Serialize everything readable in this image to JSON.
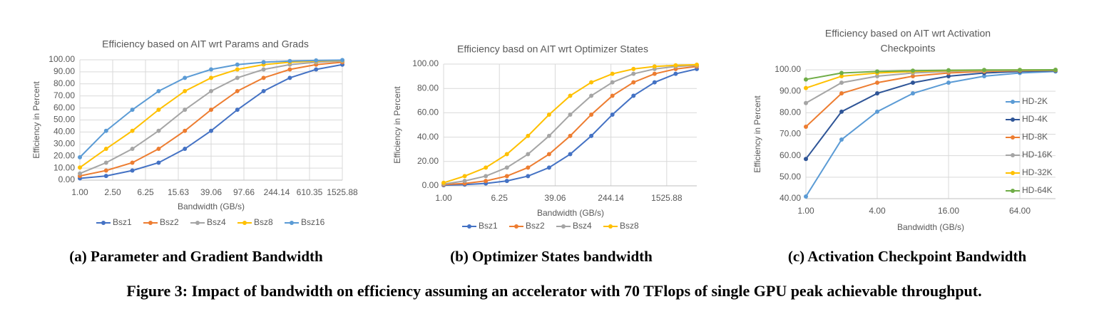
{
  "chart_data": [
    {
      "type": "line",
      "title": "Efficiency based on AIT wrt Params and Grads",
      "x_label": "Bandwidth (GB/s)",
      "y_label": "Efficiency in Percent",
      "x": [
        1,
        2.08,
        4.33,
        9.02,
        18.77,
        39.06,
        81.3,
        169.22,
        352.22,
        733.08,
        1525.88
      ],
      "xlim": [
        1,
        1525.88
      ],
      "xscale": "log",
      "xticks": [
        {
          "value": 1,
          "label": "1.00"
        },
        {
          "value": 2.5,
          "label": "2.50"
        },
        {
          "value": 6.25,
          "label": "6.25"
        },
        {
          "value": 15.625,
          "label": "15.63"
        },
        {
          "value": 39.0625,
          "label": "39.06"
        },
        {
          "value": 97.65625,
          "label": "97.66"
        },
        {
          "value": 244.140625,
          "label": "244.14"
        },
        {
          "value": 610.3515625,
          "label": "610.35"
        },
        {
          "value": 1525.87890625,
          "label": "1525.88"
        }
      ],
      "ylim": [
        0,
        100
      ],
      "yticks": [
        {
          "value": 0,
          "label": "0.00"
        },
        {
          "value": 10,
          "label": "10.00"
        },
        {
          "value": 20,
          "label": "20.00"
        },
        {
          "value": 30,
          "label": "30.00"
        },
        {
          "value": 40,
          "label": "40.00"
        },
        {
          "value": 50,
          "label": "50.00"
        },
        {
          "value": 60,
          "label": "60.00"
        },
        {
          "value": 70,
          "label": "70.00"
        },
        {
          "value": 80,
          "label": "80.00"
        },
        {
          "value": 90,
          "label": "90.00"
        },
        {
          "value": 100,
          "label": "100.00"
        }
      ],
      "grid": true,
      "legend": "bottom",
      "series": [
        {
          "name": "Bsz1",
          "color": "#4472c4",
          "values": [
            1.5,
            3.5,
            8,
            14.5,
            26,
            41,
            58.5,
            74,
            85,
            92,
            96
          ]
        },
        {
          "name": "Bsz2",
          "color": "#ed7d31",
          "values": [
            3.5,
            8,
            14.5,
            26,
            41,
            58.5,
            74,
            85,
            92,
            96,
            98
          ]
        },
        {
          "name": "Bsz4",
          "color": "#a5a5a5",
          "values": [
            5.5,
            14.5,
            26,
            41,
            58.5,
            74,
            85,
            92,
            96,
            98,
            99
          ]
        },
        {
          "name": "Bsz8",
          "color": "#ffc000",
          "values": [
            10.5,
            26,
            41,
            58.5,
            74,
            85,
            92,
            96,
            98,
            99,
            99.5
          ]
        },
        {
          "name": "Bsz16",
          "color": "#5b9bd5",
          "values": [
            19,
            41,
            58.5,
            74,
            85,
            92,
            96,
            98,
            99,
            99.5,
            99.8
          ]
        }
      ]
    },
    {
      "type": "line",
      "title": "Efficiency basd on AIT wrt Optimizer States",
      "x_label": "Bandwidth (GB/s)",
      "y_label": "Efficiency in Percent",
      "x": [
        1,
        2,
        4,
        8,
        16,
        32,
        64,
        128,
        256,
        512,
        1024,
        2048,
        4096
      ],
      "xlim": [
        1,
        4096
      ],
      "xscale": "log",
      "xticks": [
        {
          "value": 1,
          "label": "1.00"
        },
        {
          "value": 6.25,
          "label": "6.25"
        },
        {
          "value": 39.0625,
          "label": "39.06"
        },
        {
          "value": 244.140625,
          "label": "244.14"
        },
        {
          "value": 1525.87890625,
          "label": "1525.88"
        }
      ],
      "ylim": [
        0,
        100
      ],
      "yticks": [
        {
          "value": 0,
          "label": "0.00"
        },
        {
          "value": 20,
          "label": "20.00"
        },
        {
          "value": 40,
          "label": "40.00"
        },
        {
          "value": 60,
          "label": "60.00"
        },
        {
          "value": 80,
          "label": "80.00"
        },
        {
          "value": 100,
          "label": "100.00"
        }
      ],
      "grid": true,
      "legend": "bottom",
      "series": [
        {
          "name": "Bsz1",
          "color": "#4472c4",
          "values": [
            0.5,
            1,
            2,
            4,
            8,
            15,
            26,
            41,
            58.5,
            74,
            85,
            92,
            96
          ]
        },
        {
          "name": "Bsz2",
          "color": "#ed7d31",
          "values": [
            1,
            2,
            4,
            8,
            15,
            26,
            41,
            58.5,
            74,
            85,
            92,
            96,
            98
          ]
        },
        {
          "name": "Bsz4",
          "color": "#a5a5a5",
          "values": [
            1.5,
            4,
            8,
            15,
            26,
            41,
            58.5,
            74,
            85,
            92,
            96,
            98,
            99
          ]
        },
        {
          "name": "Bsz8",
          "color": "#ffc000",
          "values": [
            2.5,
            8,
            15,
            26,
            41,
            58.5,
            74,
            85,
            92,
            96,
            98,
            99,
            99.5
          ]
        }
      ]
    },
    {
      "type": "line",
      "title": [
        "Efficiency based on AIT wrt Activation",
        "Checkpoints"
      ],
      "x_label": "Bandwidth (GB/s)",
      "y_label": "Efficiency in Percent",
      "x": [
        1,
        2,
        4,
        8,
        16,
        32,
        64,
        128
      ],
      "xlim": [
        1,
        128
      ],
      "xscale": "log",
      "xticks": [
        {
          "value": 1,
          "label": "1.00"
        },
        {
          "value": 4,
          "label": "4.00"
        },
        {
          "value": 16,
          "label": "16.00"
        },
        {
          "value": 64,
          "label": "64.00"
        }
      ],
      "ylim": [
        40,
        100
      ],
      "yticks": [
        {
          "value": 40,
          "label": "40.00"
        },
        {
          "value": 50,
          "label": "50.00"
        },
        {
          "value": 60,
          "label": "60.00"
        },
        {
          "value": 70,
          "label": "70.00"
        },
        {
          "value": 80,
          "label": "80.00"
        },
        {
          "value": 90,
          "label": "90.00"
        },
        {
          "value": 100,
          "label": "100.00"
        }
      ],
      "grid": true,
      "legend": "right",
      "series": [
        {
          "name": "HD-2K",
          "color": "#5b9bd5",
          "values": [
            41,
            67.5,
            80.5,
            89,
            94,
            97,
            98.5,
            99.2
          ]
        },
        {
          "name": "HD-4K",
          "color": "#2f5597",
          "values": [
            58.5,
            80.5,
            89,
            94,
            97,
            98.5,
            99.2,
            99.6
          ]
        },
        {
          "name": "HD-8K",
          "color": "#ed7d31",
          "values": [
            73.5,
            89,
            94,
            97,
            98.5,
            99.2,
            99.6,
            99.8
          ]
        },
        {
          "name": "HD-16K",
          "color": "#a5a5a5",
          "values": [
            84.5,
            94,
            97,
            98.5,
            99.2,
            99.6,
            99.8,
            99.9
          ]
        },
        {
          "name": "HD-32K",
          "color": "#ffc000",
          "values": [
            91.5,
            97,
            98.5,
            99.2,
            99.6,
            99.8,
            99.9,
            99.9
          ]
        },
        {
          "name": "HD-64K",
          "color": "#70ad47",
          "values": [
            95.5,
            98.5,
            99.2,
            99.6,
            99.8,
            99.9,
            99.9,
            100
          ]
        }
      ]
    }
  ],
  "captions": [
    "(a) Parameter and Gradient Bandwidth",
    "(b) Optimizer States bandwidth",
    "(c) Activation Checkpoint Bandwidth"
  ],
  "figure_caption": "Figure 3: Impact of bandwidth on efficiency assuming an accelerator with 70 TFlops of single GPU peak achievable throughput."
}
